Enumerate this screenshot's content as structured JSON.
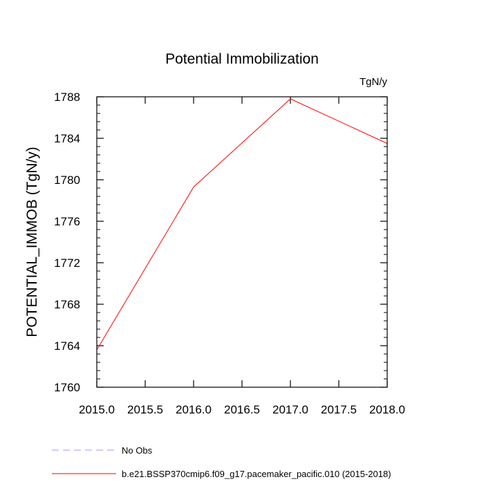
{
  "chart_data": {
    "type": "line",
    "title": "Potential Immobilization",
    "units_label": "TgN/y",
    "xlabel": "",
    "ylabel": "POTENTIAL_IMMOB  (TgN/y)",
    "xlim": [
      2015.0,
      2018.0
    ],
    "ylim": [
      1760,
      1788
    ],
    "x_ticks": [
      2015.0,
      2015.5,
      2016.0,
      2016.5,
      2017.0,
      2017.5,
      2018.0
    ],
    "x_tick_labels": [
      "2015.0",
      "2015.5",
      "2016.0",
      "2016.5",
      "2017.0",
      "2017.5",
      "2018.0"
    ],
    "y_ticks": [
      1760,
      1764,
      1768,
      1772,
      1776,
      1780,
      1784,
      1788
    ],
    "y_tick_labels": [
      "1760",
      "1764",
      "1768",
      "1772",
      "1776",
      "1780",
      "1784",
      "1788"
    ],
    "y_minor_step": 0.8,
    "series": [
      {
        "name": "b.e21.BSSP370cmip6.f09_g17.pacemaker_pacific.010 (2015-2018)",
        "color": "#ff0000",
        "dash": "solid",
        "x": [
          2015.0,
          2016.0,
          2017.0,
          2018.0
        ],
        "values": [
          1763.6,
          1779.3,
          1787.8,
          1783.5
        ]
      }
    ],
    "legend": [
      {
        "label": "No Obs",
        "color": "#9999ff",
        "dash": "dashed"
      },
      {
        "label": "b.e21.BSSP370cmip6.f09_g17.pacemaker_pacific.010 (2015-2018)",
        "color": "#ff0000",
        "dash": "solid"
      }
    ]
  }
}
